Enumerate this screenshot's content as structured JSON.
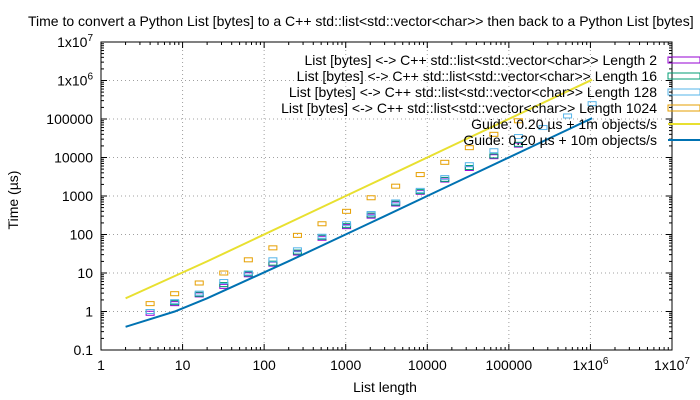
{
  "chart_data": {
    "type": "scatter",
    "title": "Time to convert a Python List [bytes] to a C++ std::list<std::vector<char>> then back to a Python List [bytes]",
    "xlabel": "List length",
    "ylabel": "Time (µs)",
    "xscale": "log",
    "yscale": "log",
    "xlim": [
      1,
      10000000
    ],
    "ylim": [
      0.1,
      10000000
    ],
    "x_tick_labels": [
      "1",
      "10",
      "100",
      "1000",
      "10000",
      "100000",
      "1x10^6",
      "1x10^7"
    ],
    "y_tick_labels": [
      "0.1",
      "1",
      "10",
      "100",
      "1000",
      "10000",
      "100000",
      "1x10^6",
      "1x10^7"
    ],
    "grid": true,
    "legend_position": "top-right",
    "series": [
      {
        "name": "List [bytes] <-> C++ std::list<std::vector<char>> Length 2",
        "kind": "points",
        "color": "#9400d3",
        "points": [
          {
            "x": 4,
            "y": 0.9
          },
          {
            "x": 8,
            "y": 1.6
          },
          {
            "x": 16,
            "y": 2.7
          },
          {
            "x": 32,
            "y": 4.5
          },
          {
            "x": 64,
            "y": 9
          },
          {
            "x": 128,
            "y": 17
          },
          {
            "x": 256,
            "y": 33
          },
          {
            "x": 512,
            "y": 80
          },
          {
            "x": 1024,
            "y": 160
          },
          {
            "x": 2048,
            "y": 300
          },
          {
            "x": 4096,
            "y": 620
          },
          {
            "x": 8192,
            "y": 1250
          },
          {
            "x": 16384,
            "y": 2600
          },
          {
            "x": 32768,
            "y": 5200
          },
          {
            "x": 65536,
            "y": 10500
          },
          {
            "x": 131072,
            "y": 21000
          }
        ]
      },
      {
        "name": "List [bytes] <-> C++ std::list<std::vector<char>> Length 16",
        "kind": "points",
        "color": "#009e73",
        "points": [
          {
            "x": 4,
            "y": 1.0
          },
          {
            "x": 8,
            "y": 1.7
          },
          {
            "x": 16,
            "y": 2.8
          },
          {
            "x": 32,
            "y": 5
          },
          {
            "x": 64,
            "y": 9.5
          },
          {
            "x": 128,
            "y": 18
          },
          {
            "x": 256,
            "y": 35
          },
          {
            "x": 512,
            "y": 85
          },
          {
            "x": 1024,
            "y": 170
          },
          {
            "x": 2048,
            "y": 320
          },
          {
            "x": 4096,
            "y": 650
          },
          {
            "x": 8192,
            "y": 1300
          },
          {
            "x": 16384,
            "y": 2700
          },
          {
            "x": 32768,
            "y": 5500
          },
          {
            "x": 65536,
            "y": 11000
          },
          {
            "x": 131072,
            "y": 22000
          }
        ]
      },
      {
        "name": "List [bytes] <-> C++ std::list<std::vector<char>> Length 128",
        "kind": "points",
        "color": "#56b4e9",
        "points": [
          {
            "x": 4,
            "y": 1.0
          },
          {
            "x": 8,
            "y": 1.8
          },
          {
            "x": 16,
            "y": 3.0
          },
          {
            "x": 32,
            "y": 6
          },
          {
            "x": 64,
            "y": 10
          },
          {
            "x": 128,
            "y": 22
          },
          {
            "x": 256,
            "y": 40
          },
          {
            "x": 512,
            "y": 90
          },
          {
            "x": 1024,
            "y": 190
          },
          {
            "x": 2048,
            "y": 350
          },
          {
            "x": 4096,
            "y": 700
          },
          {
            "x": 8192,
            "y": 1400
          },
          {
            "x": 16384,
            "y": 3000
          },
          {
            "x": 32768,
            "y": 6500
          },
          {
            "x": 65536,
            "y": 15000
          },
          {
            "x": 131072,
            "y": 35000
          },
          {
            "x": 262144,
            "y": 60000
          },
          {
            "x": 524288,
            "y": 120000
          },
          {
            "x": 1048576,
            "y": 250000
          }
        ]
      },
      {
        "name": "List [bytes] <-> C++ std::list<std::vector<char>> Length 1024",
        "kind": "points",
        "color": "#e69f00",
        "points": [
          {
            "x": 4,
            "y": 1.6
          },
          {
            "x": 8,
            "y": 2.9
          },
          {
            "x": 16,
            "y": 5.5
          },
          {
            "x": 32,
            "y": 10
          },
          {
            "x": 64,
            "y": 22
          },
          {
            "x": 128,
            "y": 45
          },
          {
            "x": 256,
            "y": 95
          },
          {
            "x": 512,
            "y": 190
          },
          {
            "x": 1024,
            "y": 400
          },
          {
            "x": 2048,
            "y": 900
          },
          {
            "x": 4096,
            "y": 1800
          },
          {
            "x": 8192,
            "y": 3600
          },
          {
            "x": 16384,
            "y": 7500
          },
          {
            "x": 32768,
            "y": 18000
          },
          {
            "x": 65536,
            "y": 40000
          },
          {
            "x": 131072,
            "y": 90000
          }
        ]
      },
      {
        "name": "Guide: 0.20 µs + 1m objects/s",
        "kind": "line",
        "color": "#e8e030",
        "points": [
          {
            "x": 2,
            "y": 2.2
          },
          {
            "x": 20,
            "y": 20
          },
          {
            "x": 200,
            "y": 200
          },
          {
            "x": 2000,
            "y": 2000
          },
          {
            "x": 20000,
            "y": 20000
          },
          {
            "x": 200000,
            "y": 200000
          },
          {
            "x": 1048576,
            "y": 1048576
          }
        ]
      },
      {
        "name": "Guide: 0.20 µs + 10m objects/s",
        "kind": "line",
        "color": "#0072b2",
        "points": [
          {
            "x": 2,
            "y": 0.4
          },
          {
            "x": 8,
            "y": 1.0
          },
          {
            "x": 20,
            "y": 2.2
          },
          {
            "x": 200,
            "y": 20.2
          },
          {
            "x": 2000,
            "y": 200
          },
          {
            "x": 20000,
            "y": 2000
          },
          {
            "x": 200000,
            "y": 20000
          },
          {
            "x": 1048576,
            "y": 104858
          }
        ]
      }
    ]
  }
}
